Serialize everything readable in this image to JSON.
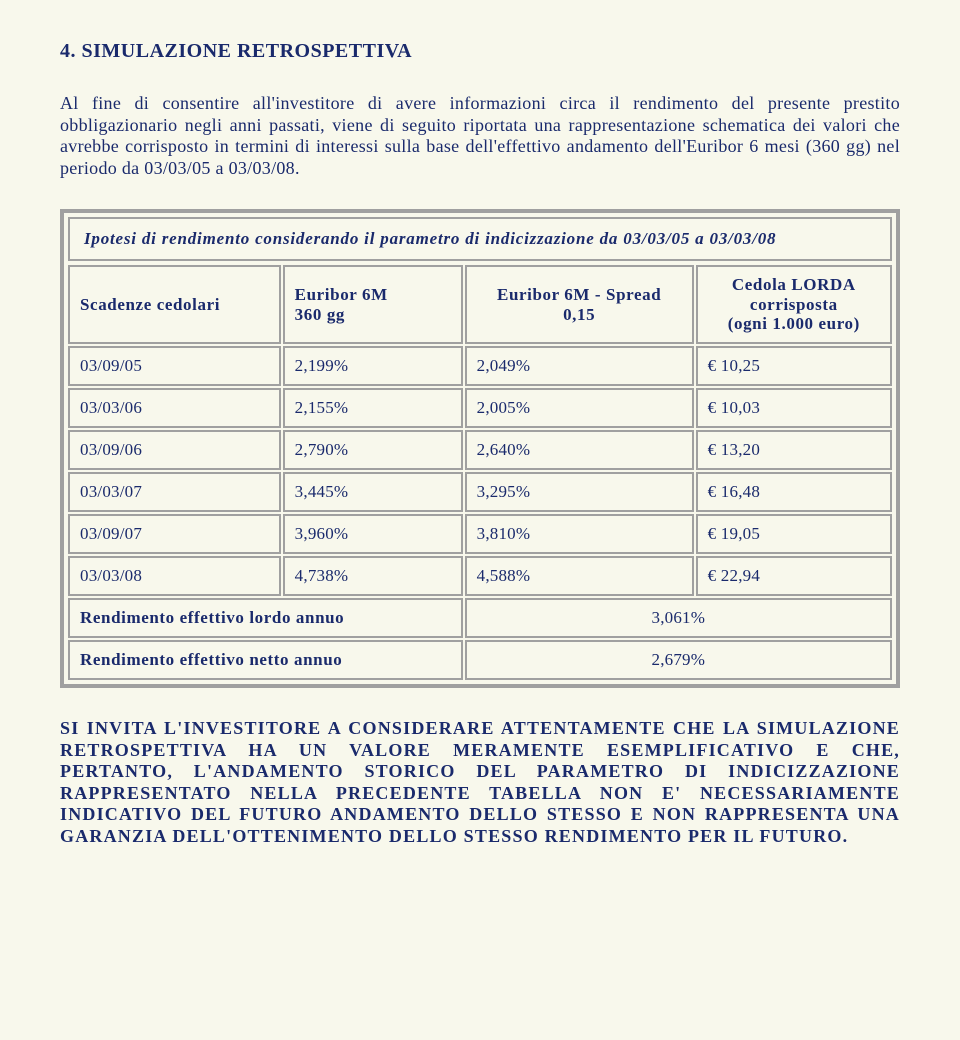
{
  "heading": "4. SIMULAZIONE RETROSPETTIVA",
  "intro": "Al fine di consentire all'investitore di avere informazioni circa il rendimento del presente prestito obbligazionario negli anni passati, viene di seguito riportata una rappresentazione schematica dei valori che avrebbe corrisposto in termini di interessi sulla base dell'effettivo andamento dell'Euribor 6 mesi (360 gg) nel periodo da 03/03/05 a 03/03/08.",
  "table": {
    "caption": "Ipotesi di rendimento considerando il parametro di indicizzazione da 03/03/05 a 03/03/08",
    "headers": {
      "c0": "Scadenze cedolari",
      "c1_l1": "Euribor 6M",
      "c1_l2": "360 gg",
      "c2_l1": "Euribor 6M - Spread",
      "c2_l2": "0,15",
      "c3_l1": "Cedola LORDA",
      "c3_l2": "corrisposta",
      "c3_l3": "(ogni 1.000 euro)"
    },
    "rows": [
      {
        "date": "03/09/05",
        "eur": "2,199%",
        "spread": "2,049%",
        "cedola": "€ 10,25"
      },
      {
        "date": "03/03/06",
        "eur": "2,155%",
        "spread": "2,005%",
        "cedola": "€ 10,03"
      },
      {
        "date": "03/09/06",
        "eur": "2,790%",
        "spread": "2,640%",
        "cedola": "€ 13,20"
      },
      {
        "date": "03/03/07",
        "eur": "3,445%",
        "spread": "3,295%",
        "cedola": "€ 16,48"
      },
      {
        "date": "03/09/07",
        "eur": "3,960%",
        "spread": "3,810%",
        "cedola": "€ 19,05"
      },
      {
        "date": "03/03/08",
        "eur": "4,738%",
        "spread": "4,588%",
        "cedola": "€ 22,94"
      }
    ],
    "summary": [
      {
        "label": "Rendimento effettivo lordo annuo",
        "value": "3,061%"
      },
      {
        "label": "Rendimento effettivo netto annuo",
        "value": "2,679%"
      }
    ]
  },
  "closing": "SI INVITA L'INVESTITORE A CONSIDERARE ATTENTAMENTE CHE LA SIMULAZIONE RETROSPETTIVA HA UN VALORE MERAMENTE ESEMPLIFICATIVO E CHE, PERTANTO, L'ANDAMENTO STORICO DEL PARAMETRO DI INDICIZZAZIONE RAPPRESENTATO NELLA PRECEDENTE TABELLA NON E' NECESSARIAMENTE INDICATIVO DEL FUTURO ANDAMENTO DELLO STESSO E NON RAPPRESENTA UNA GARANZIA DELL'OTTENIMENTO DELLO STESSO RENDIMENTO PER IL FUTURO."
}
